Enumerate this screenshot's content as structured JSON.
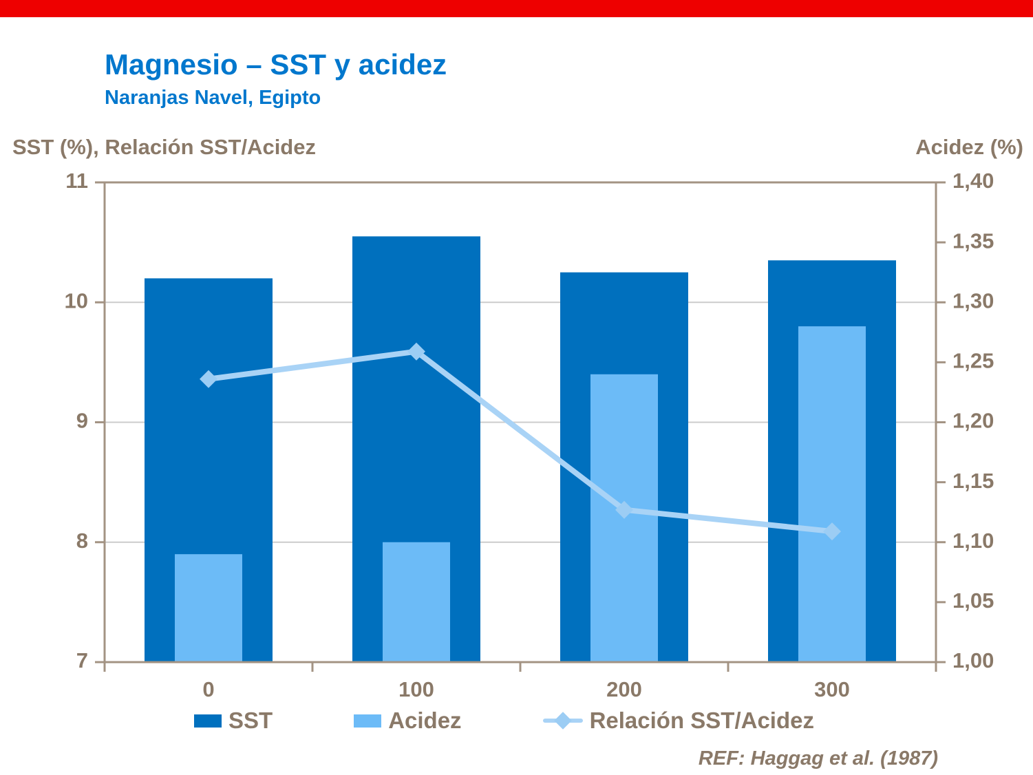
{
  "title": "Magnesio – SST y acidez",
  "subtitle": "Naranjas Navel, Egipto",
  "reference": "REF: Haggag et al. (1987)",
  "colors": {
    "top_bar_red": "#ee0000",
    "title_blue": "#0077cd",
    "axis_text_brown": "#8a7968",
    "frame_brown": "#a39383",
    "gridline_gray": "#cccccc",
    "sst_bar_blue": "#0070be",
    "acidez_bar_lightblue": "#6cbbf7",
    "ratio_line_paleblue": "#a9d3f6",
    "ratio_marker_paleblue": "#9ccdf4"
  },
  "chart_data": {
    "type": "combo",
    "categories": [
      "0",
      "100",
      "200",
      "300"
    ],
    "series": [
      {
        "name": "SST",
        "type": "bar",
        "axis": "left",
        "color": "#0070be",
        "values": [
          10.2,
          10.55,
          10.25,
          10.35
        ]
      },
      {
        "name": "Acidez",
        "type": "bar",
        "axis": "right",
        "color": "#6cbbf7",
        "values": [
          1.09,
          1.1,
          1.24,
          1.28
        ]
      },
      {
        "name": "Relación SST/Acidez",
        "type": "line",
        "axis": "left",
        "color": "#a9d3f6",
        "marker_color": "#9ccdf4",
        "values": [
          9.36,
          9.59,
          8.27,
          8.09
        ]
      }
    ],
    "left_axis": {
      "label": "SST (%), Relación SST/Acidez",
      "min": 7,
      "max": 11,
      "ticks": [
        7,
        8,
        9,
        10,
        11
      ],
      "tick_labels": [
        "7",
        "8",
        "9",
        "10",
        "11"
      ]
    },
    "right_axis": {
      "label": "Acidez (%)",
      "min": 1.0,
      "max": 1.4,
      "ticks": [
        1.0,
        1.05,
        1.1,
        1.15,
        1.2,
        1.25,
        1.3,
        1.35,
        1.4
      ],
      "tick_labels": [
        "1,00",
        "1,05",
        "1,10",
        "1,15",
        "1,20",
        "1,25",
        "1,30",
        "1,35",
        "1,40"
      ]
    },
    "x_axis": {
      "tick_labels": [
        "0",
        "100",
        "200",
        "300"
      ]
    },
    "legend_position": "bottom",
    "grid": true
  }
}
